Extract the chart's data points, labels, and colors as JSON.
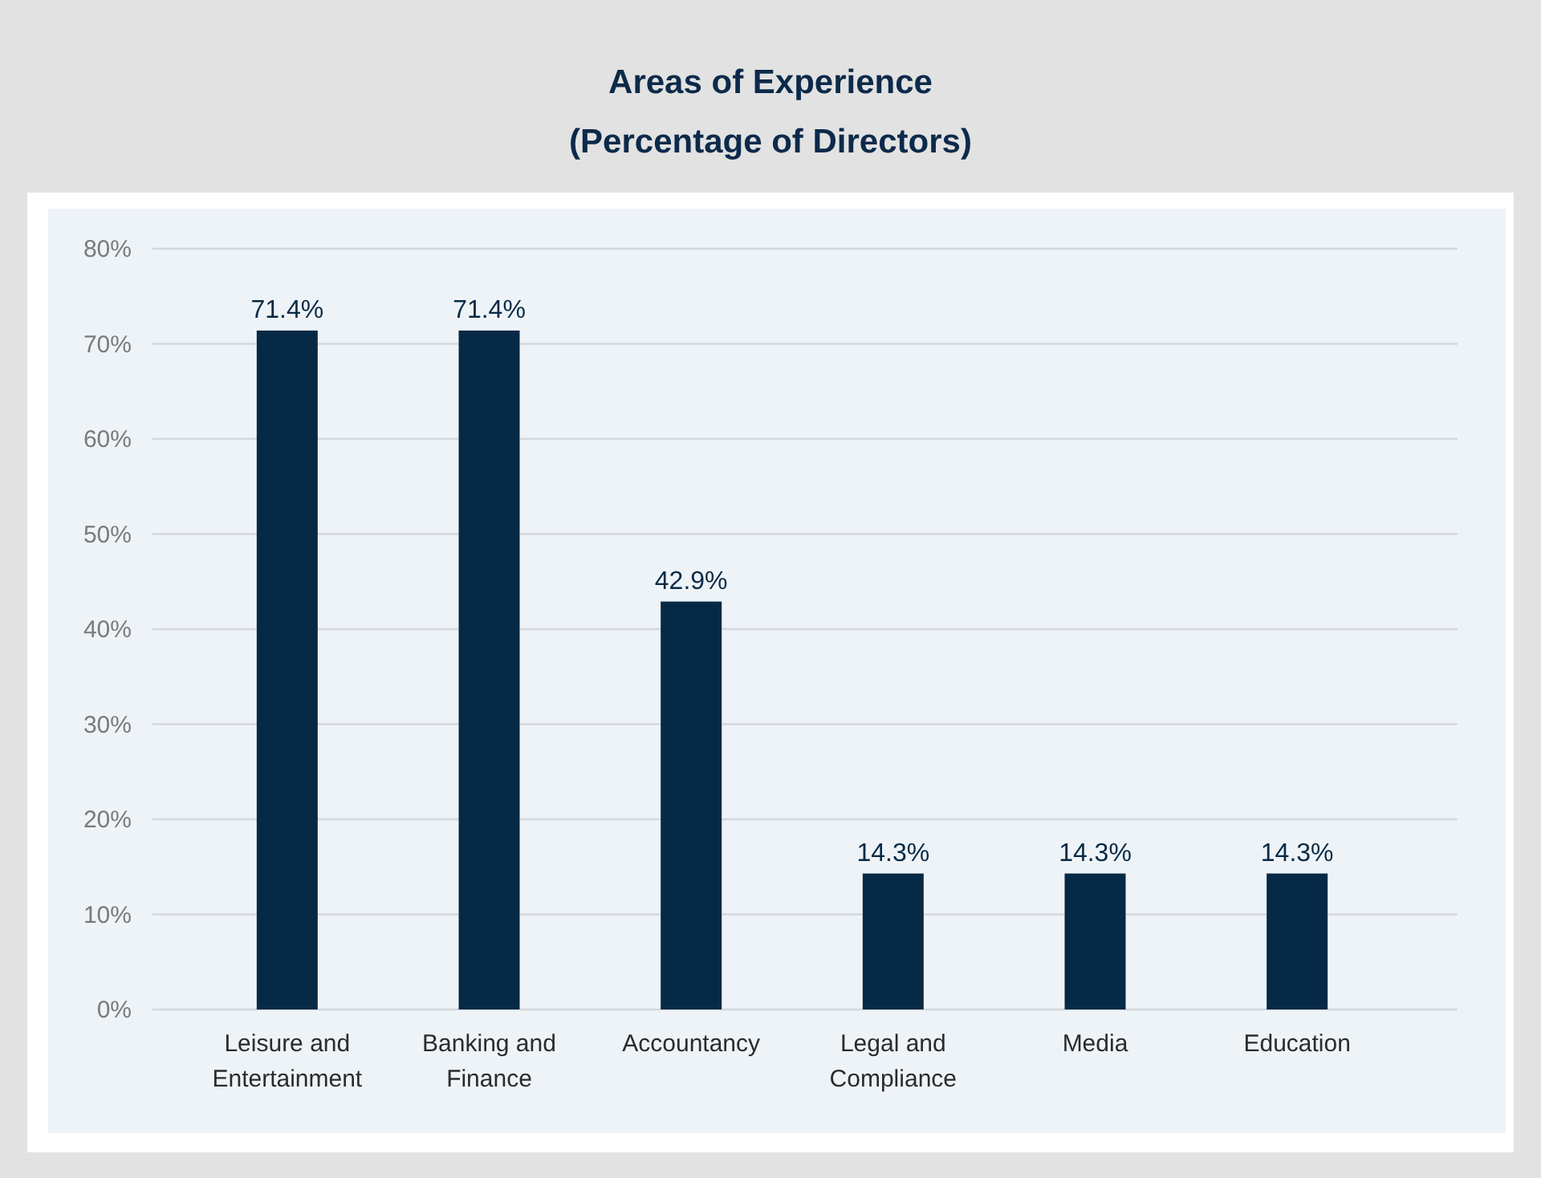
{
  "chart_data": {
    "type": "bar",
    "title": "Areas of Experience",
    "subtitle": "(Percentage of Directors)",
    "categories": [
      "Leisure and Entertainment",
      "Banking and Finance",
      "Accountancy",
      "Legal and Compliance",
      "Media",
      "Education"
    ],
    "values": [
      71.4,
      71.4,
      42.9,
      14.3,
      14.3,
      14.3
    ],
    "value_labels": [
      "71.4%",
      "71.4%",
      "42.9%",
      "14.3%",
      "14.3%",
      "14.3%"
    ],
    "color": "#062a45",
    "ylim": [
      0,
      80
    ],
    "yticks": [
      {
        "value": 0,
        "label": "0%"
      },
      {
        "value": 10,
        "label": "10%"
      },
      {
        "value": 20,
        "label": "20%"
      },
      {
        "value": 30,
        "label": "30%"
      },
      {
        "value": 40,
        "label": "40%"
      },
      {
        "value": 50,
        "label": "50%"
      },
      {
        "value": 60,
        "label": "60%"
      },
      {
        "value": 70,
        "label": "70%"
      },
      {
        "value": 80,
        "label": "80%"
      }
    ],
    "grid": "y"
  }
}
